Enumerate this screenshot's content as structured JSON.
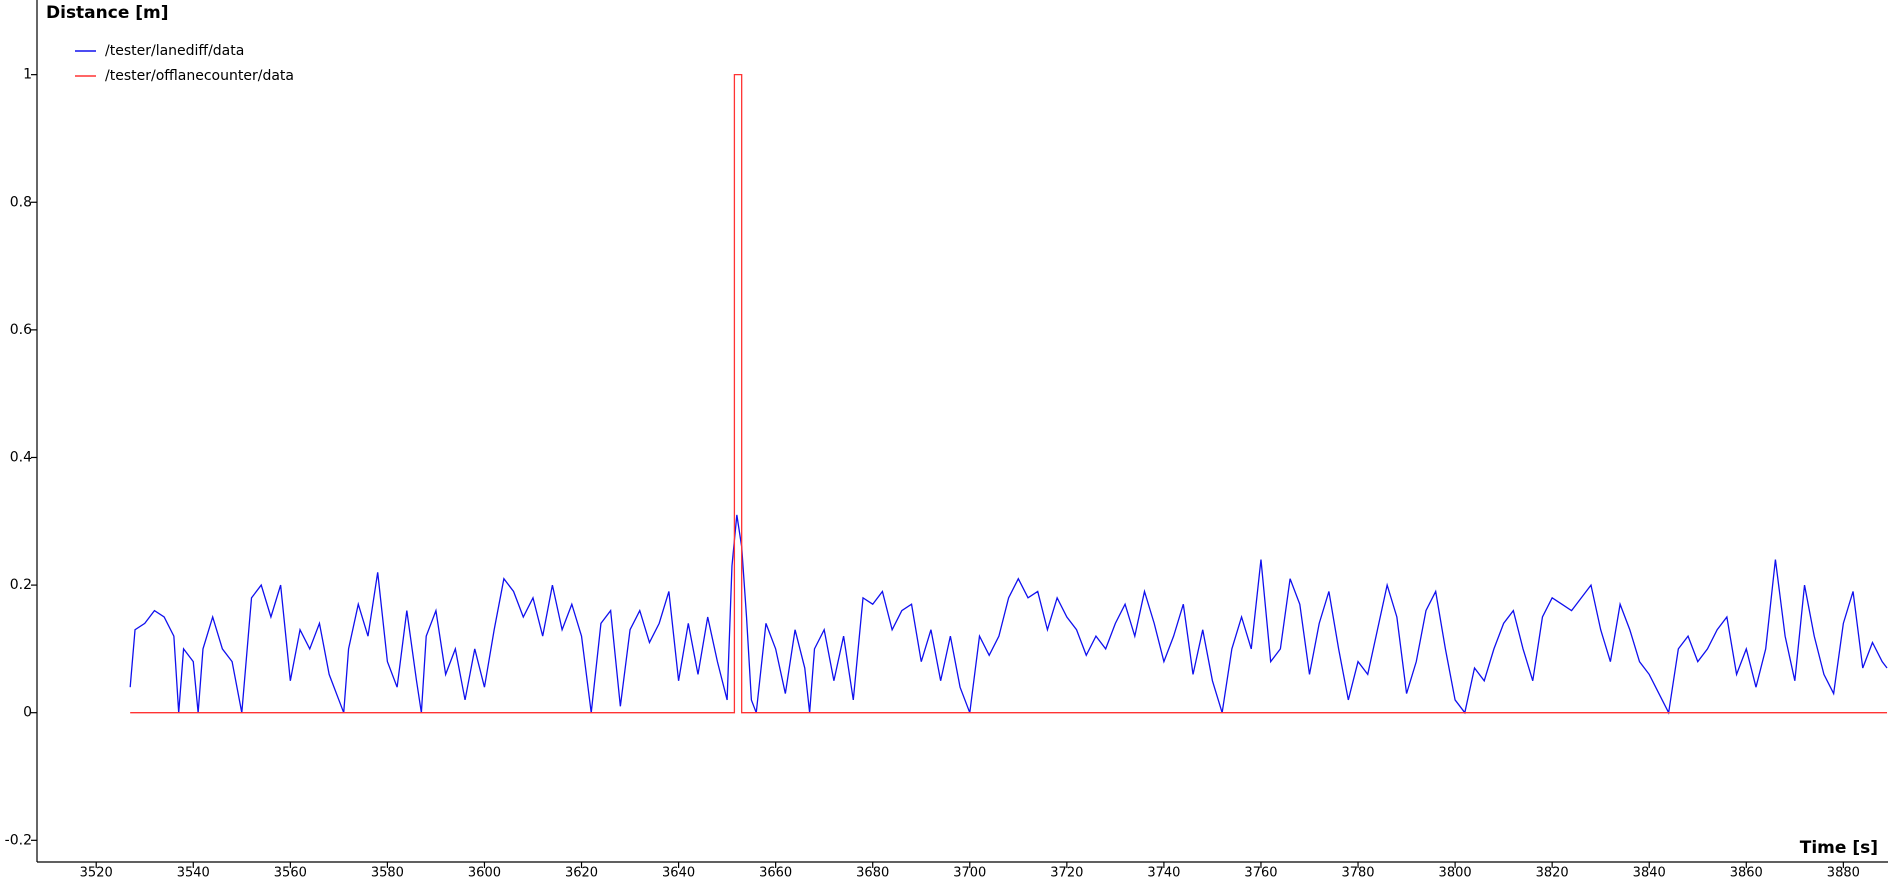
{
  "chart_data": {
    "type": "line",
    "ylabel": "Distance [m]",
    "xlabel": "Time [s]",
    "xlim": [
      3507.8,
      3889.2
    ],
    "ylim": [
      -0.234,
      1.117
    ],
    "xticks": [
      3520,
      3540,
      3560,
      3580,
      3600,
      3620,
      3640,
      3660,
      3680,
      3700,
      3720,
      3740,
      3760,
      3780,
      3800,
      3820,
      3840,
      3860,
      3880
    ],
    "yticks": [
      -0.2,
      0,
      0.2,
      0.4,
      0.6,
      0.8,
      1
    ],
    "legend": "upper-left",
    "series": [
      {
        "name": "/tester/lanediff/data",
        "color": "#1010ee",
        "x": [
          3527,
          3528,
          3530,
          3532,
          3534,
          3536,
          3537,
          3538,
          3540,
          3541,
          3542,
          3544,
          3546,
          3548,
          3550,
          3552,
          3554,
          3556,
          3558,
          3560,
          3562,
          3564,
          3566,
          3568,
          3570,
          3571,
          3572,
          3574,
          3576,
          3578,
          3580,
          3582,
          3584,
          3586,
          3587,
          3588,
          3590,
          3592,
          3594,
          3596,
          3598,
          3600,
          3602,
          3604,
          3606,
          3608,
          3610,
          3612,
          3614,
          3616,
          3618,
          3620,
          3622,
          3624,
          3626,
          3628,
          3630,
          3632,
          3634,
          3636,
          3638,
          3640,
          3642,
          3644,
          3646,
          3648,
          3650,
          3651,
          3652,
          3653,
          3654,
          3655,
          3656,
          3658,
          3660,
          3662,
          3664,
          3666,
          3667,
          3668,
          3670,
          3672,
          3674,
          3676,
          3678,
          3680,
          3682,
          3684,
          3686,
          3688,
          3690,
          3692,
          3694,
          3696,
          3698,
          3700,
          3702,
          3704,
          3706,
          3708,
          3710,
          3712,
          3714,
          3716,
          3718,
          3720,
          3722,
          3724,
          3726,
          3728,
          3730,
          3732,
          3734,
          3736,
          3738,
          3740,
          3742,
          3744,
          3746,
          3748,
          3750,
          3752,
          3754,
          3756,
          3758,
          3760,
          3762,
          3764,
          3766,
          3768,
          3770,
          3772,
          3774,
          3776,
          3778,
          3780,
          3782,
          3784,
          3786,
          3788,
          3790,
          3792,
          3794,
          3796,
          3798,
          3800,
          3802,
          3804,
          3806,
          3808,
          3810,
          3812,
          3814,
          3816,
          3818,
          3820,
          3822,
          3824,
          3826,
          3828,
          3830,
          3832,
          3834,
          3836,
          3838,
          3840,
          3842,
          3844,
          3846,
          3848,
          3850,
          3852,
          3854,
          3856,
          3858,
          3860,
          3862,
          3864,
          3866,
          3868,
          3870,
          3872,
          3874,
          3876,
          3878,
          3880,
          3882,
          3884,
          3886,
          3888,
          3889
        ],
        "values": [
          0.04,
          0.13,
          0.14,
          0.16,
          0.15,
          0.12,
          0,
          0.1,
          0.08,
          0,
          0.1,
          0.15,
          0.1,
          0.08,
          0,
          0.18,
          0.2,
          0.15,
          0.2,
          0.05,
          0.13,
          0.1,
          0.14,
          0.06,
          0.02,
          0,
          0.1,
          0.17,
          0.12,
          0.22,
          0.08,
          0.04,
          0.16,
          0.05,
          0,
          0.12,
          0.16,
          0.06,
          0.1,
          0.02,
          0.1,
          0.04,
          0.13,
          0.21,
          0.19,
          0.15,
          0.18,
          0.12,
          0.2,
          0.13,
          0.17,
          0.12,
          0,
          0.14,
          0.16,
          0.01,
          0.13,
          0.16,
          0.11,
          0.14,
          0.19,
          0.05,
          0.14,
          0.06,
          0.15,
          0.08,
          0.02,
          0.23,
          0.31,
          0.26,
          0.15,
          0.02,
          0,
          0.14,
          0.1,
          0.03,
          0.13,
          0.07,
          0,
          0.1,
          0.13,
          0.05,
          0.12,
          0.02,
          0.18,
          0.17,
          0.19,
          0.13,
          0.16,
          0.17,
          0.08,
          0.13,
          0.05,
          0.12,
          0.04,
          0,
          0.12,
          0.09,
          0.12,
          0.18,
          0.21,
          0.18,
          0.19,
          0.13,
          0.18,
          0.15,
          0.13,
          0.09,
          0.12,
          0.1,
          0.14,
          0.17,
          0.12,
          0.19,
          0.14,
          0.08,
          0.12,
          0.17,
          0.06,
          0.13,
          0.05,
          0,
          0.1,
          0.15,
          0.1,
          0.24,
          0.08,
          0.1,
          0.21,
          0.17,
          0.06,
          0.14,
          0.19,
          0.1,
          0.02,
          0.08,
          0.06,
          0.13,
          0.2,
          0.15,
          0.03,
          0.08,
          0.16,
          0.19,
          0.1,
          0.02,
          0,
          0.07,
          0.05,
          0.1,
          0.14,
          0.16,
          0.1,
          0.05,
          0.15,
          0.18,
          0.17,
          0.16,
          0.18,
          0.2,
          0.13,
          0.08,
          0.17,
          0.13,
          0.08,
          0.06,
          0.03,
          0,
          0.1,
          0.12,
          0.08,
          0.1,
          0.13,
          0.15,
          0.06,
          0.1,
          0.04,
          0.1,
          0.24,
          0.12,
          0.05,
          0.2,
          0.12,
          0.06,
          0.03,
          0.14,
          0.19,
          0.07,
          0.11,
          0.08,
          0.07
        ]
      },
      {
        "name": "/tester/offlanecounter/data",
        "color": "#ff3333",
        "x": [
          3527,
          3651.5,
          3651.5,
          3653,
          3653,
          3889
        ],
        "values": [
          0,
          0,
          1,
          1,
          0,
          0
        ]
      }
    ]
  }
}
